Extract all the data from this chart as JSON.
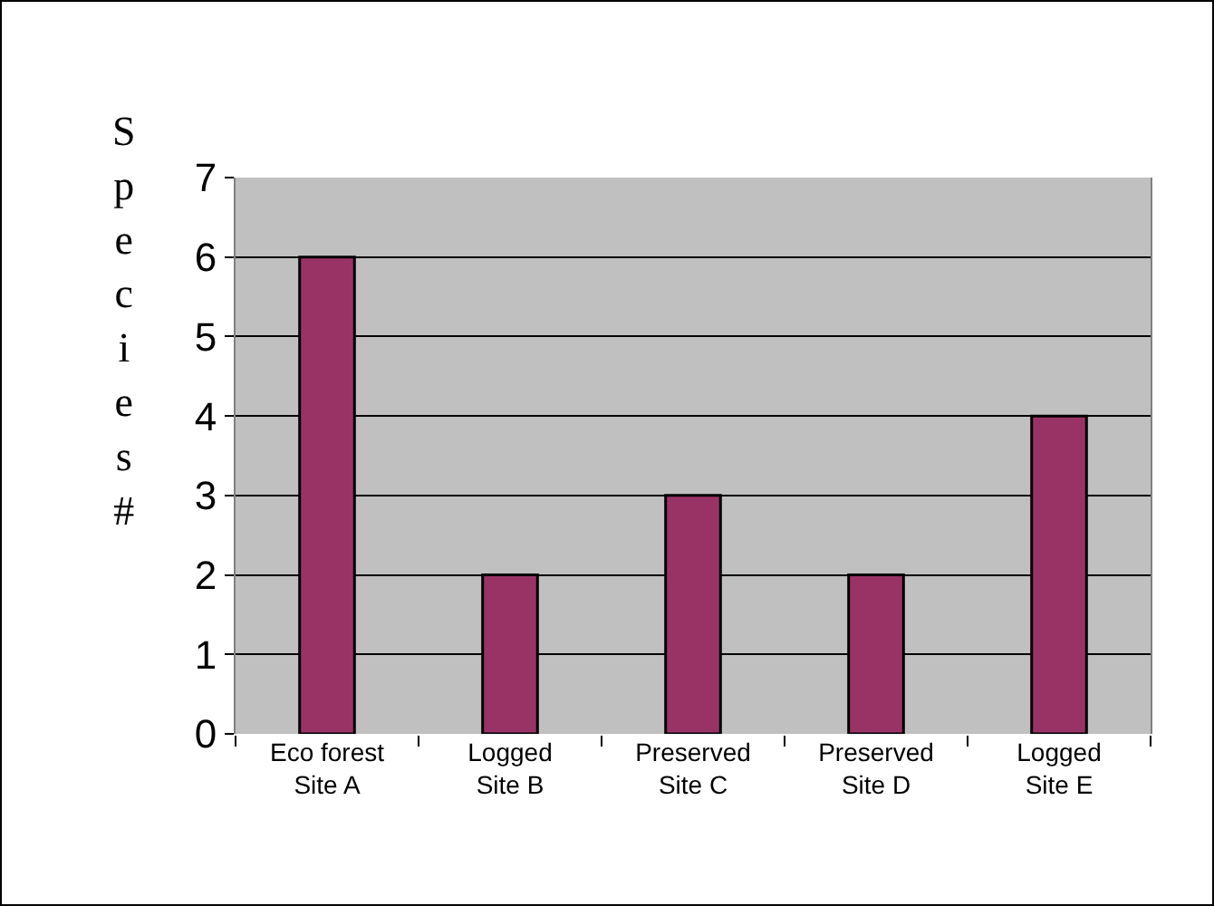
{
  "chart_data": {
    "type": "bar",
    "ylabel": "Species #",
    "categories": [
      "Eco forest\nSite A",
      "Logged\nSite B",
      "Preserved\nSite C",
      "Preserved\nSite D",
      "Logged\nSite E"
    ],
    "values": [
      6,
      2,
      3,
      2,
      4
    ],
    "color": "#993366",
    "ylim": [
      0,
      7
    ],
    "yticks": [
      0,
      1,
      2,
      3,
      4,
      5,
      6,
      7
    ],
    "grid": "y"
  }
}
